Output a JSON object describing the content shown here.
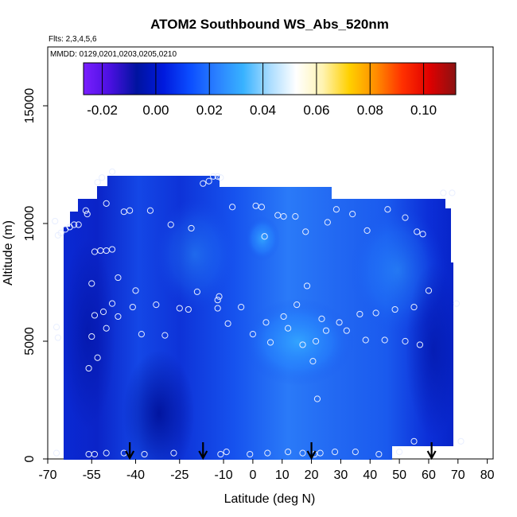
{
  "chart_data": {
    "type": "heatmap",
    "title": "ATOM2 Southbound WS_Abs_520nm",
    "annotation_flights": "Flts: 2,3,4,5,6",
    "annotation_dates": "MMDD: 0129,0201,0203,0205,0210",
    "xlabel": "Latitude (deg N)",
    "ylabel": "Altitude (m)",
    "xlim": [
      -70,
      82
    ],
    "ylim": [
      0,
      17500
    ],
    "x_ticks": [
      -70,
      -55,
      -40,
      -25,
      -10,
      0,
      10,
      20,
      30,
      40,
      50,
      60,
      70,
      80
    ],
    "x_tick_labels": [
      "-70",
      "-55",
      "-40",
      "-25",
      "-10",
      "0",
      "10",
      "20",
      "30",
      "40",
      "50",
      "60",
      "70",
      "80"
    ],
    "y_ticks": [
      0,
      5000,
      10000,
      15000
    ],
    "y_tick_labels": [
      "0",
      "5000",
      "10000",
      "15000"
    ],
    "colorbar": {
      "range": [
        -0.027,
        0.112
      ],
      "ticks": [
        -0.02,
        0.0,
        0.02,
        0.04,
        0.06,
        0.08,
        0.1
      ],
      "tick_labels": [
        "-0.02",
        "0.00",
        "0.02",
        "0.04",
        "0.06",
        "0.08",
        "0.10"
      ],
      "colors": [
        "#7a1fff",
        "#4a10e0",
        "#00139f",
        "#0019dd",
        "#0b4dff",
        "#2a80ff",
        "#38b2ff",
        "#a9dcff",
        "#ffffff",
        "#fff3b0",
        "#ffd000",
        "#ff8c00",
        "#ff3000",
        "#e00000",
        "#8b1212"
      ]
    },
    "profile_arrows_latitude": [
      -42,
      -17,
      20,
      61
    ],
    "observed_points": [
      {
        "lat": -67.5,
        "alt": 10100
      },
      {
        "lat": -66.5,
        "alt": 9500
      },
      {
        "lat": -65.5,
        "alt": 9600
      },
      {
        "lat": -64,
        "alt": 9750
      },
      {
        "lat": -62.5,
        "alt": 9850
      },
      {
        "lat": -61,
        "alt": 9950
      },
      {
        "lat": -59.5,
        "alt": 9950
      },
      {
        "lat": -57,
        "alt": 10550
      },
      {
        "lat": -56.5,
        "alt": 10400
      },
      {
        "lat": -53,
        "alt": 11750
      },
      {
        "lat": -51.5,
        "alt": 11950
      },
      {
        "lat": -50,
        "alt": 10850
      },
      {
        "lat": -48,
        "alt": 12200
      },
      {
        "lat": -54,
        "alt": 8800
      },
      {
        "lat": -52,
        "alt": 8850
      },
      {
        "lat": -50,
        "alt": 8850
      },
      {
        "lat": -48,
        "alt": 8900
      },
      {
        "lat": -44,
        "alt": 10500
      },
      {
        "lat": -42,
        "alt": 10550
      },
      {
        "lat": -35,
        "alt": 10550
      },
      {
        "lat": -28,
        "alt": 9950
      },
      {
        "lat": -21,
        "alt": 9800
      },
      {
        "lat": -46,
        "alt": 7700
      },
      {
        "lat": -55,
        "alt": 7450
      },
      {
        "lat": -40,
        "alt": 7150
      },
      {
        "lat": -54,
        "alt": 6100
      },
      {
        "lat": -51,
        "alt": 6250
      },
      {
        "lat": -48,
        "alt": 6600
      },
      {
        "lat": -46,
        "alt": 6050
      },
      {
        "lat": -41,
        "alt": 6450
      },
      {
        "lat": -38,
        "alt": 5300
      },
      {
        "lat": -33,
        "alt": 6550
      },
      {
        "lat": -30,
        "alt": 5250
      },
      {
        "lat": -25,
        "alt": 6400
      },
      {
        "lat": -22,
        "alt": 6350
      },
      {
        "lat": -19,
        "alt": 7100
      },
      {
        "lat": -67,
        "alt": 5600
      },
      {
        "lat": -66.5,
        "alt": 5150
      },
      {
        "lat": -55,
        "alt": 5200
      },
      {
        "lat": -53,
        "alt": 4300
      },
      {
        "lat": -50,
        "alt": 5550
      },
      {
        "lat": -56,
        "alt": 3850
      },
      {
        "lat": -12,
        "alt": 6400
      },
      {
        "lat": -12,
        "alt": 6750
      },
      {
        "lat": -11.5,
        "alt": 6900
      },
      {
        "lat": -8.5,
        "alt": 5750
      },
      {
        "lat": -4,
        "alt": 6450
      },
      {
        "lat": 0,
        "alt": 5300
      },
      {
        "lat": 4.5,
        "alt": 5800
      },
      {
        "lat": 6,
        "alt": 4950
      },
      {
        "lat": 10.5,
        "alt": 6050
      },
      {
        "lat": 12,
        "alt": 5550
      },
      {
        "lat": 15,
        "alt": 6550
      },
      {
        "lat": 18.5,
        "alt": 7350
      },
      {
        "lat": 17,
        "alt": 4850
      },
      {
        "lat": 20.5,
        "alt": 4150
      },
      {
        "lat": 21.5,
        "alt": 5000
      },
      {
        "lat": 23.5,
        "alt": 5950
      },
      {
        "lat": 25,
        "alt": 5450
      },
      {
        "lat": 29.5,
        "alt": 5800
      },
      {
        "lat": 32,
        "alt": 5450
      },
      {
        "lat": 36.5,
        "alt": 6150
      },
      {
        "lat": 38.5,
        "alt": 5050
      },
      {
        "lat": 42,
        "alt": 6200
      },
      {
        "lat": 45,
        "alt": 5050
      },
      {
        "lat": 48.5,
        "alt": 6350
      },
      {
        "lat": 52,
        "alt": 5000
      },
      {
        "lat": 55,
        "alt": 6450
      },
      {
        "lat": 57,
        "alt": 4850
      },
      {
        "lat": 60,
        "alt": 7150
      },
      {
        "lat": 69.5,
        "alt": 6600
      },
      {
        "lat": -17,
        "alt": 11700
      },
      {
        "lat": -15,
        "alt": 11800
      },
      {
        "lat": -13.5,
        "alt": 12000
      },
      {
        "lat": -12,
        "alt": 12000
      },
      {
        "lat": -11,
        "alt": 11950
      },
      {
        "lat": -7,
        "alt": 10700
      },
      {
        "lat": 1,
        "alt": 10750
      },
      {
        "lat": 3,
        "alt": 10700
      },
      {
        "lat": 4,
        "alt": 9450
      },
      {
        "lat": 8.5,
        "alt": 10350
      },
      {
        "lat": 10.5,
        "alt": 10300
      },
      {
        "lat": 14.5,
        "alt": 10300
      },
      {
        "lat": 18,
        "alt": 9650
      },
      {
        "lat": 25.5,
        "alt": 10050
      },
      {
        "lat": 28.5,
        "alt": 10600
      },
      {
        "lat": 34,
        "alt": 10400
      },
      {
        "lat": 39,
        "alt": 9700
      },
      {
        "lat": 46,
        "alt": 10600
      },
      {
        "lat": 52,
        "alt": 10250
      },
      {
        "lat": 56,
        "alt": 9650
      },
      {
        "lat": 58,
        "alt": 9550
      },
      {
        "lat": 65,
        "alt": 11300
      },
      {
        "lat": 68,
        "alt": 11300
      },
      {
        "lat": 22,
        "alt": 2550
      },
      {
        "lat": -67,
        "alt": 250
      },
      {
        "lat": -56,
        "alt": 200
      },
      {
        "lat": -54,
        "alt": 200
      },
      {
        "lat": -50,
        "alt": 250
      },
      {
        "lat": -44,
        "alt": 250
      },
      {
        "lat": -37,
        "alt": 200
      },
      {
        "lat": -27,
        "alt": 250
      },
      {
        "lat": -11,
        "alt": 200
      },
      {
        "lat": -9,
        "alt": 300
      },
      {
        "lat": -1,
        "alt": 200
      },
      {
        "lat": 5,
        "alt": 250
      },
      {
        "lat": 12,
        "alt": 300
      },
      {
        "lat": 17,
        "alt": 250
      },
      {
        "lat": 21,
        "alt": 200
      },
      {
        "lat": 23,
        "alt": 250
      },
      {
        "lat": 28,
        "alt": 300
      },
      {
        "lat": 35,
        "alt": 300
      },
      {
        "lat": 43,
        "alt": 200
      },
      {
        "lat": 50,
        "alt": 300
      },
      {
        "lat": 55,
        "alt": 750
      },
      {
        "lat": 71,
        "alt": 750
      }
    ]
  }
}
